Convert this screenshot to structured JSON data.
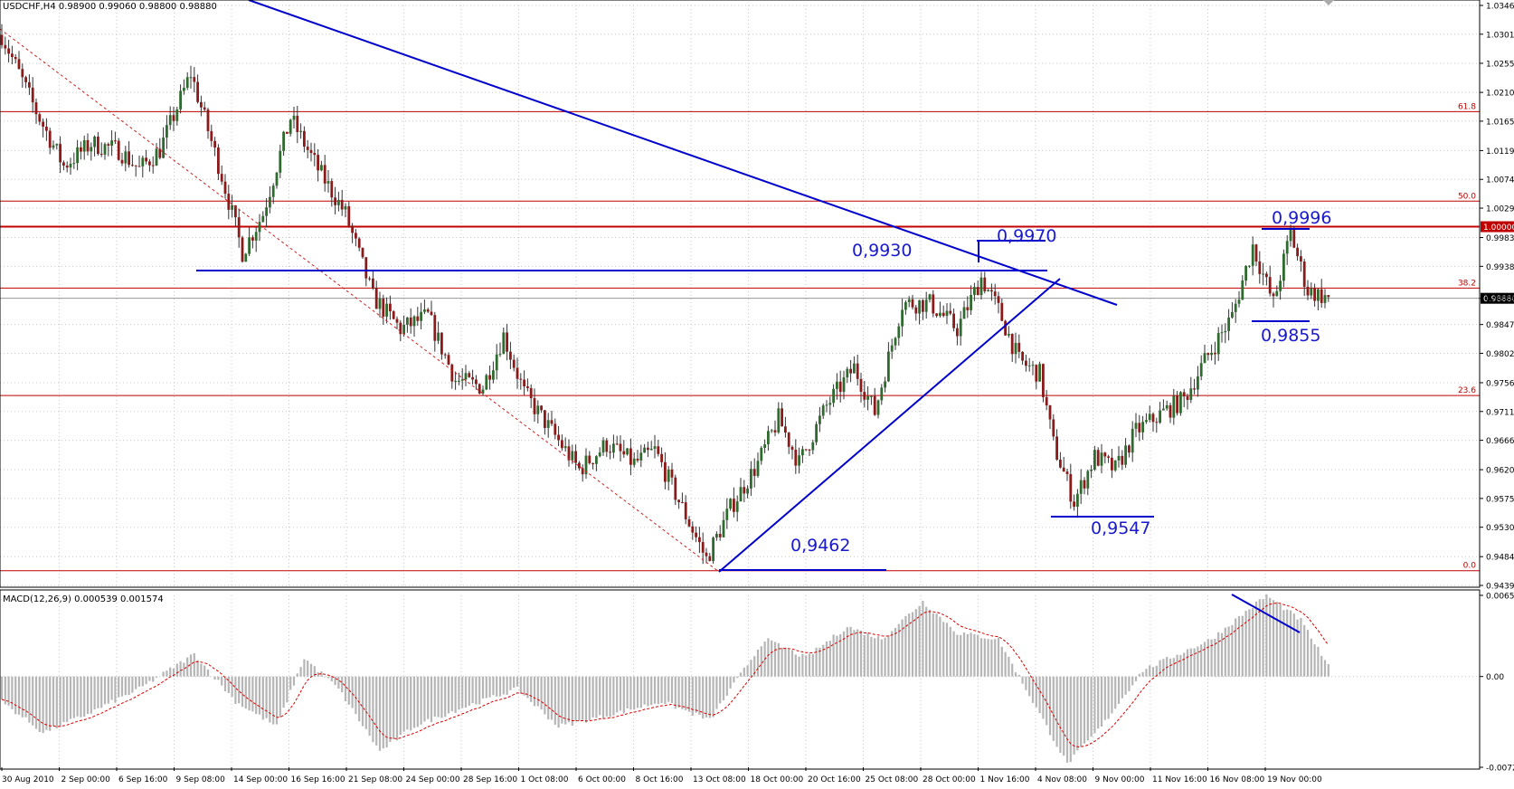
{
  "header": {
    "symbol_text": "USDCHF,H4  0.98900 0.99060 0.98800 0.98880",
    "macd_text": "MACD(12,26,9) 0.000539 0.001574"
  },
  "colors": {
    "bull_candle": "#2f6b2f",
    "bear_candle": "#8b1a1a",
    "wick": "#333333",
    "trendline": "#0000cc",
    "fib_line": "#c00000",
    "annotation_text": "#1a1acc",
    "macd_hist": "#b5b5b5",
    "macd_signal": "#dd0000",
    "grid": "#c8c8c8"
  },
  "chart_data": {
    "type": "candlestick",
    "instrument": "USDCHF",
    "timeframe": "H4",
    "ylim": [
      0.9439,
      1.0346
    ],
    "y_ticks": [
      "1.03460",
      "1.03010",
      "1.02555",
      "1.02100",
      "1.01650",
      "1.01190",
      "1.00740",
      "1.00290",
      "0.99830",
      "0.99380",
      "0.98880",
      "0.98470",
      "0.98020",
      "0.97560",
      "0.97110",
      "0.96660",
      "0.96200",
      "0.95750",
      "0.95300",
      "0.94840",
      "0.94390"
    ],
    "current_price": "0.98880",
    "round_level_label": "1.00000",
    "x_labels": [
      "30 Aug 2010",
      "2 Sep 00:00",
      "6 Sep 16:00",
      "9 Sep 08:00",
      "14 Sep 00:00",
      "16 Sep 16:00",
      "21 Sep 08:00",
      "24 Sep 00:00",
      "28 Sep 16:00",
      "1 Oct 08:00",
      "6 Oct 00:00",
      "8 Oct 16:00",
      "13 Oct 08:00",
      "18 Oct 00:00",
      "20 Oct 16:00",
      "25 Oct 08:00",
      "28 Oct 00:00",
      "1 Nov 16:00",
      "4 Nov 08:00",
      "9 Nov 00:00",
      "11 Nov 16:00",
      "16 Nov 08:00",
      "19 Nov 00:00"
    ],
    "fib_levels": [
      {
        "label": "61.8",
        "value": 1.018
      },
      {
        "label": "50.0",
        "value": 1.004
      },
      {
        "label": "38.2",
        "value": 0.9904
      },
      {
        "label": "23.6",
        "value": 0.9736
      },
      {
        "label": "0.0",
        "value": 0.9462
      }
    ],
    "annotations": [
      "0,9930",
      "0,9970",
      "0,9996",
      "0,9855",
      "0,9462",
      "0,9547"
    ],
    "price_anchors": [
      {
        "t": 0,
        "v": 1.03
      },
      {
        "t": 10,
        "v": 1.018
      },
      {
        "t": 18,
        "v": 1.0095
      },
      {
        "t": 26,
        "v": 1.013
      },
      {
        "t": 34,
        "v": 1.012
      },
      {
        "t": 40,
        "v": 1.009
      },
      {
        "t": 46,
        "v": 1.012
      },
      {
        "t": 55,
        "v": 1.024
      },
      {
        "t": 64,
        "v": 1.008
      },
      {
        "t": 70,
        "v": 0.996
      },
      {
        "t": 76,
        "v": 1.002
      },
      {
        "t": 84,
        "v": 1.017
      },
      {
        "t": 92,
        "v": 1.009
      },
      {
        "t": 100,
        "v": 1.002
      },
      {
        "t": 108,
        "v": 0.989
      },
      {
        "t": 116,
        "v": 0.984
      },
      {
        "t": 124,
        "v": 0.986
      },
      {
        "t": 132,
        "v": 0.976
      },
      {
        "t": 140,
        "v": 0.975
      },
      {
        "t": 146,
        "v": 0.983
      },
      {
        "t": 152,
        "v": 0.974
      },
      {
        "t": 160,
        "v": 0.968
      },
      {
        "t": 168,
        "v": 0.962
      },
      {
        "t": 176,
        "v": 0.966
      },
      {
        "t": 184,
        "v": 0.963
      },
      {
        "t": 190,
        "v": 0.965
      },
      {
        "t": 198,
        "v": 0.956
      },
      {
        "t": 205,
        "v": 0.948
      },
      {
        "t": 212,
        "v": 0.956
      },
      {
        "t": 220,
        "v": 0.963
      },
      {
        "t": 226,
        "v": 0.97
      },
      {
        "t": 232,
        "v": 0.963
      },
      {
        "t": 240,
        "v": 0.972
      },
      {
        "t": 248,
        "v": 0.978
      },
      {
        "t": 254,
        "v": 0.971
      },
      {
        "t": 262,
        "v": 0.988
      },
      {
        "t": 270,
        "v": 0.988
      },
      {
        "t": 278,
        "v": 0.984
      },
      {
        "t": 285,
        "v": 0.992
      },
      {
        "t": 290,
        "v": 0.987
      },
      {
        "t": 296,
        "v": 0.979
      },
      {
        "t": 302,
        "v": 0.977
      },
      {
        "t": 306,
        "v": 0.966
      },
      {
        "t": 312,
        "v": 0.957
      },
      {
        "t": 318,
        "v": 0.964
      },
      {
        "t": 324,
        "v": 0.962
      },
      {
        "t": 330,
        "v": 0.968
      },
      {
        "t": 338,
        "v": 0.971
      },
      {
        "t": 344,
        "v": 0.973
      },
      {
        "t": 350,
        "v": 0.979
      },
      {
        "t": 358,
        "v": 0.986
      },
      {
        "t": 364,
        "v": 0.997
      },
      {
        "t": 370,
        "v": 0.988
      },
      {
        "t": 375,
        "v": 0.999
      },
      {
        "t": 380,
        "v": 0.99
      },
      {
        "t": 386,
        "v": 0.9888
      }
    ],
    "macd_ylim": [
      -0.00727,
      0.0065
    ],
    "macd_y_ticks": [
      "0.006502",
      "0.00",
      "-0.00727"
    ],
    "macd_anchors": [
      {
        "t": 0,
        "v": -0.002
      },
      {
        "t": 12,
        "v": -0.0045
      },
      {
        "t": 25,
        "v": -0.003
      },
      {
        "t": 40,
        "v": -0.001
      },
      {
        "t": 56,
        "v": 0.0018
      },
      {
        "t": 68,
        "v": -0.002
      },
      {
        "t": 80,
        "v": -0.004
      },
      {
        "t": 88,
        "v": 0.0015
      },
      {
        "t": 98,
        "v": -0.001
      },
      {
        "t": 110,
        "v": -0.006
      },
      {
        "t": 120,
        "v": -0.004
      },
      {
        "t": 134,
        "v": -0.0025
      },
      {
        "t": 150,
        "v": -0.001
      },
      {
        "t": 162,
        "v": -0.004
      },
      {
        "t": 178,
        "v": -0.003
      },
      {
        "t": 192,
        "v": -0.002
      },
      {
        "t": 206,
        "v": -0.0035
      },
      {
        "t": 222,
        "v": 0.003
      },
      {
        "t": 234,
        "v": 0.0015
      },
      {
        "t": 246,
        "v": 0.004
      },
      {
        "t": 256,
        "v": 0.003
      },
      {
        "t": 268,
        "v": 0.006
      },
      {
        "t": 278,
        "v": 0.0035
      },
      {
        "t": 290,
        "v": 0.003
      },
      {
        "t": 300,
        "v": -0.002
      },
      {
        "t": 310,
        "v": -0.007
      },
      {
        "t": 320,
        "v": -0.004
      },
      {
        "t": 332,
        "v": 0.0005
      },
      {
        "t": 352,
        "v": 0.003
      },
      {
        "t": 368,
        "v": 0.0065
      },
      {
        "t": 378,
        "v": 0.0045
      },
      {
        "t": 386,
        "v": 0.0008
      }
    ]
  }
}
